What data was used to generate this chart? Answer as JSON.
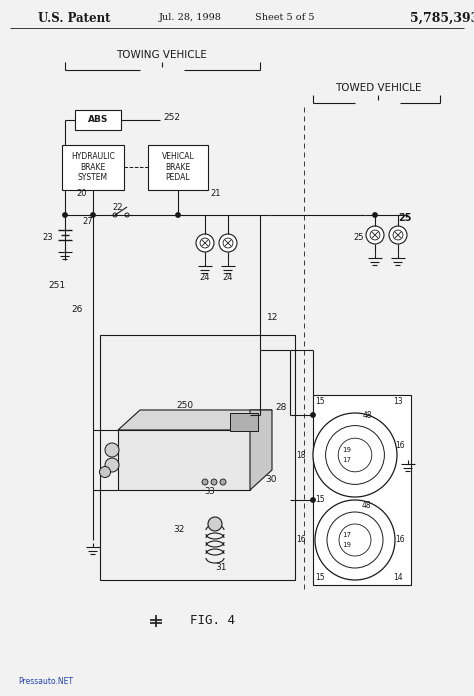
{
  "bg_color": "#f2f2f2",
  "line_color": "#1a1a1a",
  "white": "#ffffff",
  "header_left": "U.S. Patent",
  "header_date": "Jul. 28, 1998",
  "header_sheet": "Sheet 5 of 5",
  "header_num": "5,785,393",
  "towing_label": "TOWING VEHICLE",
  "towed_label": "TOWED VEHICLE",
  "fig_label": "FIG. 4",
  "footer": "Pressauto.NET",
  "abs_label": "ABS",
  "hbs_label": "HYDRAULIC\nBRAKE\nSYSTEM",
  "vbp_label": "VEHICAL\nBRAKE\nPEDAL",
  "n252": "252",
  "n21": "21",
  "n20": "20",
  "n22": "22",
  "n23": "23",
  "n24": "24",
  "n25": "25",
  "n27": "27",
  "n251": "251",
  "n26": "26",
  "n28": "28",
  "n250": "250",
  "n12": "12",
  "n30": "30",
  "n33": "33",
  "n32": "32",
  "n31": "31",
  "n13": "13",
  "n14": "14",
  "n15": "15",
  "n16": "16",
  "n17": "17",
  "n18": "18",
  "n19": "19",
  "n48": "48"
}
